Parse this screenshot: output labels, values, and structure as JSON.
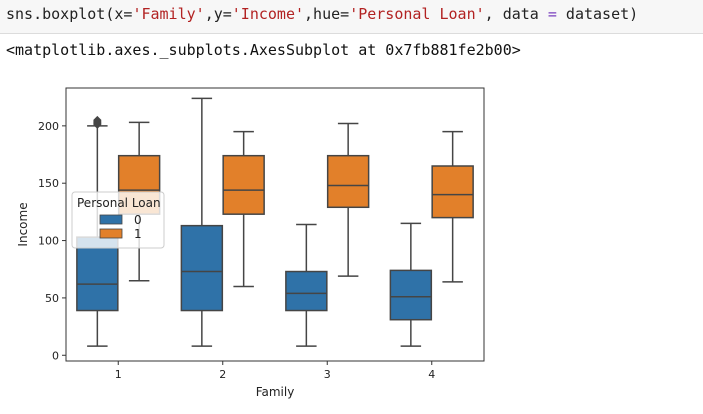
{
  "code": {
    "fn": "sns.boxplot(x=",
    "x_arg": "'Family'",
    "sep1": ",y=",
    "y_arg": "'Income'",
    "sep2": ",hue=",
    "hue_arg": "'Personal Loan'",
    "sep3": ", data ",
    "eq": "=",
    "rest": " dataset)"
  },
  "output_text": "<matplotlib.axes._subplots.AxesSubplot at 0x7fb881fe2b00>",
  "chart_data": {
    "type": "box",
    "xlabel": "Family",
    "ylabel": "Income",
    "categories": [
      "1",
      "2",
      "3",
      "4"
    ],
    "ylim": [
      -5,
      233
    ],
    "yticks": [
      0,
      50,
      100,
      150,
      200
    ],
    "legend": {
      "title": "Personal Loan",
      "placement": "center-left"
    },
    "series": [
      {
        "name": "0",
        "color": "#2f72a8",
        "boxes": [
          {
            "whisker_low": 8,
            "q1": 39,
            "median": 62,
            "q3": 103,
            "whisker_high": 200,
            "outliers": [
              201,
              202,
              203,
              204,
              205
            ]
          },
          {
            "whisker_low": 8,
            "q1": 39,
            "median": 73,
            "q3": 113,
            "whisker_high": 224,
            "outliers": []
          },
          {
            "whisker_low": 8,
            "q1": 39,
            "median": 54,
            "q3": 73,
            "whisker_high": 114,
            "outliers": []
          },
          {
            "whisker_low": 8,
            "q1": 31,
            "median": 51,
            "q3": 74,
            "whisker_high": 115,
            "outliers": []
          }
        ]
      },
      {
        "name": "1",
        "color": "#e2802a",
        "boxes": [
          {
            "whisker_low": 65,
            "q1": 123,
            "median": 144,
            "q3": 174,
            "whisker_high": 203,
            "outliers": []
          },
          {
            "whisker_low": 60,
            "q1": 123,
            "median": 144,
            "q3": 174,
            "whisker_high": 195,
            "outliers": []
          },
          {
            "whisker_low": 69,
            "q1": 129,
            "median": 148,
            "q3": 174,
            "whisker_high": 202,
            "outliers": []
          },
          {
            "whisker_low": 64,
            "q1": 120,
            "median": 140,
            "q3": 165,
            "whisker_high": 195,
            "outliers": []
          }
        ]
      }
    ]
  }
}
